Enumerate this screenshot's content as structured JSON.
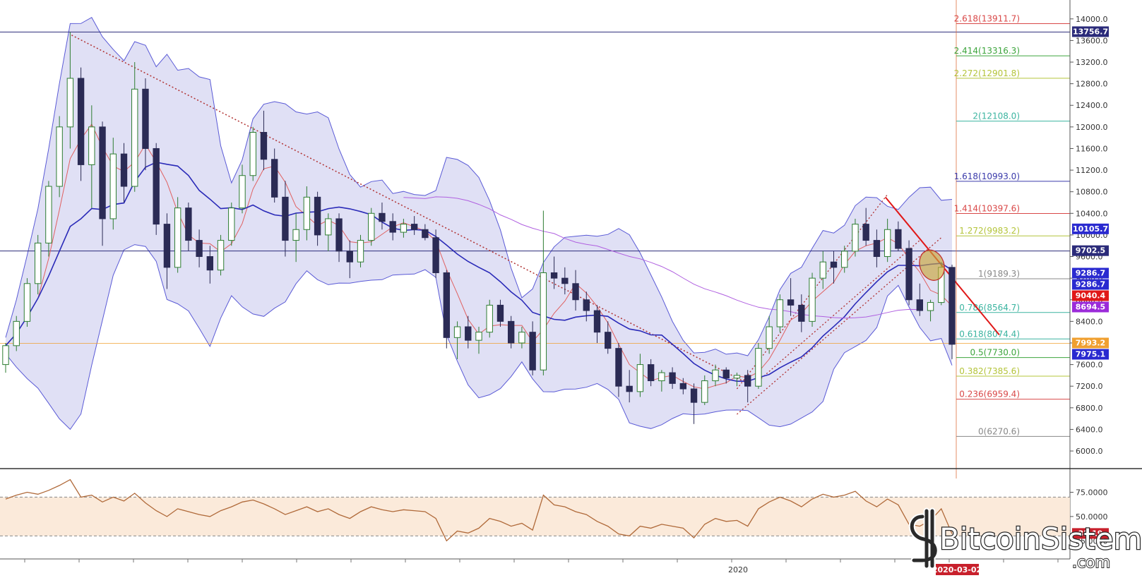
{
  "chart_data": {
    "type": "candlestick",
    "ylim": [
      5700,
      14350
    ],
    "rsi_ylim": [
      15,
      95
    ],
    "price_ticks": [
      14000.0,
      13600.0,
      13200.0,
      12800.0,
      12400.0,
      12000.0,
      11600.0,
      11200.0,
      10800.0,
      10400.0,
      10000.0,
      9600.0,
      9200.0,
      8800.0,
      8400.0,
      8000.0,
      7600.0,
      7200.0,
      6800.0,
      6400.0,
      6000.0
    ],
    "price_tick_labels": [
      "14000.0",
      "13600.0",
      "13200.0",
      "12800.0",
      "12400.0",
      "12000.0",
      "11600.0",
      "11200.0",
      "10800.0",
      "10400.0",
      "10000.0",
      "9600.0",
      "9200.0",
      "8800.0",
      "8400.0",
      "8000.0",
      "7600.0",
      "7200.0",
      "6800.0",
      "6400.0",
      "6000.0"
    ],
    "rsi_ticks": [
      75,
      50,
      25
    ],
    "rsi_tick_labels": [
      "75.0000",
      "50.0000",
      "25.0000"
    ],
    "rsi_levels": [
      70,
      30
    ],
    "x_date_labels": [
      {
        "label": "2020",
        "x": 168
      }
    ],
    "crosshair_date": {
      "label": "2020-03-02",
      "x": 171
    },
    "horizontal_lines": [
      {
        "value": 13756.7,
        "color": "#2b2b7a"
      },
      {
        "value": 9702.5,
        "color": "#2b2b7a"
      },
      {
        "value": 7993.2,
        "color": "#f0a030"
      }
    ],
    "fibonacci": [
      {
        "ratio": "2.618",
        "price": "13911.7",
        "value": 13911.7,
        "color": "#d94848"
      },
      {
        "ratio": "2.414",
        "price": "13316.3",
        "value": 13316.3,
        "color": "#3da53d"
      },
      {
        "ratio": "2.272",
        "price": "12901.8",
        "value": 12901.8,
        "color": "#b4c43a"
      },
      {
        "ratio": "2",
        "price": "12108.0",
        "value": 12108.0,
        "color": "#3bb4a0"
      },
      {
        "ratio": "1.618",
        "price": "10993.0",
        "value": 10993.0,
        "color": "#3a3aaa"
      },
      {
        "ratio": "1.414",
        "price": "10397.6",
        "value": 10397.6,
        "color": "#d94848"
      },
      {
        "ratio": "1.272",
        "price": "9983.2",
        "value": 9983.2,
        "color": "#b4c43a"
      },
      {
        "ratio": "1",
        "price": "9189.3",
        "value": 9189.3,
        "color": "#888888"
      },
      {
        "ratio": "0.786",
        "price": "8564.7",
        "value": 8564.7,
        "color": "#3bb4a0"
      },
      {
        "ratio": "0.618",
        "price": "8074.4",
        "value": 8074.4,
        "color": "#3bb4a0"
      },
      {
        "ratio": "0.5",
        "price": "7730.0",
        "value": 7730.0,
        "color": "#3da53d"
      },
      {
        "ratio": "0.382",
        "price": "7385.6",
        "value": 7385.6,
        "color": "#b4c43a"
      },
      {
        "ratio": "0.236",
        "price": "6959.4",
        "value": 6959.4,
        "color": "#d94848"
      },
      {
        "ratio": "0",
        "price": "6270.6",
        "value": 6270.6,
        "color": "#888888"
      }
    ],
    "price_badges": [
      {
        "label": "13756.7",
        "value": 13756.7,
        "color": "#2b2b7a"
      },
      {
        "label": "10105.7",
        "value": 10105.7,
        "color": "#2a2ad0"
      },
      {
        "label": "9702.5",
        "value": 9702.5,
        "color": "#2b2b7a"
      },
      {
        "label": "9286.7",
        "value": 9286.7,
        "color": "#2a2ad0"
      },
      {
        "label": "9286.7",
        "value": 9286.7,
        "color": "#2a2ad0"
      },
      {
        "label": "9040.4",
        "value": 9040.4,
        "color": "#e01818"
      },
      {
        "label": "8694.5",
        "value": 8694.5,
        "color": "#9b2bd9"
      },
      {
        "label": "7993.2",
        "value": 7993.2,
        "color": "#f0a030"
      },
      {
        "label": "7975.1",
        "value": 7975.1,
        "color": "#2a2ad0"
      }
    ],
    "rsi_badge": {
      "label": "32.19",
      "color": "#c8202c"
    },
    "candles": [
      {
        "o": 7600,
        "h": 8000,
        "l": 7450,
        "c": 7950
      },
      {
        "o": 7950,
        "h": 8500,
        "l": 7850,
        "c": 8400
      },
      {
        "o": 8400,
        "h": 9200,
        "l": 8300,
        "c": 9100
      },
      {
        "o": 9100,
        "h": 10000,
        "l": 8900,
        "c": 9850
      },
      {
        "o": 9850,
        "h": 11000,
        "l": 9600,
        "c": 10900
      },
      {
        "o": 10900,
        "h": 12200,
        "l": 10700,
        "c": 12000
      },
      {
        "o": 12000,
        "h": 13756.7,
        "l": 11600,
        "c": 12900
      },
      {
        "o": 12900,
        "h": 13100,
        "l": 11000,
        "c": 11300
      },
      {
        "o": 11300,
        "h": 12400,
        "l": 10500,
        "c": 12000
      },
      {
        "o": 12000,
        "h": 12100,
        "l": 9800,
        "c": 10300
      },
      {
        "o": 10300,
        "h": 11800,
        "l": 10100,
        "c": 11500
      },
      {
        "o": 11500,
        "h": 11700,
        "l": 10600,
        "c": 10900
      },
      {
        "o": 10900,
        "h": 13200,
        "l": 10800,
        "c": 12700
      },
      {
        "o": 12700,
        "h": 12900,
        "l": 11200,
        "c": 11600
      },
      {
        "o": 11600,
        "h": 11700,
        "l": 10000,
        "c": 10200
      },
      {
        "o": 10200,
        "h": 10400,
        "l": 9000,
        "c": 9400
      },
      {
        "o": 9400,
        "h": 10700,
        "l": 9300,
        "c": 10500
      },
      {
        "o": 10500,
        "h": 10600,
        "l": 9700,
        "c": 9900
      },
      {
        "o": 9900,
        "h": 10100,
        "l": 9400,
        "c": 9600
      },
      {
        "o": 9600,
        "h": 9800,
        "l": 9100,
        "c": 9350
      },
      {
        "o": 9350,
        "h": 10000,
        "l": 9250,
        "c": 9900
      },
      {
        "o": 9900,
        "h": 10600,
        "l": 9800,
        "c": 10500
      },
      {
        "o": 10500,
        "h": 11300,
        "l": 10400,
        "c": 11100
      },
      {
        "o": 11100,
        "h": 12000,
        "l": 11000,
        "c": 11900
      },
      {
        "o": 11900,
        "h": 12300,
        "l": 11200,
        "c": 11400
      },
      {
        "o": 11400,
        "h": 11600,
        "l": 10600,
        "c": 10700
      },
      {
        "o": 10700,
        "h": 11000,
        "l": 9600,
        "c": 9900
      },
      {
        "o": 9900,
        "h": 10400,
        "l": 9500,
        "c": 10100
      },
      {
        "o": 10100,
        "h": 10900,
        "l": 9900,
        "c": 10700
      },
      {
        "o": 10700,
        "h": 10800,
        "l": 9800,
        "c": 10000
      },
      {
        "o": 10000,
        "h": 10400,
        "l": 9700,
        "c": 10300
      },
      {
        "o": 10300,
        "h": 10400,
        "l": 9500,
        "c": 9700
      },
      {
        "o": 9700,
        "h": 9900,
        "l": 9200,
        "c": 9500
      },
      {
        "o": 9500,
        "h": 10000,
        "l": 9400,
        "c": 9900
      },
      {
        "o": 9900,
        "h": 10500,
        "l": 9800,
        "c": 10400
      },
      {
        "o": 10400,
        "h": 10600,
        "l": 10100,
        "c": 10250
      },
      {
        "o": 10250,
        "h": 10400,
        "l": 9900,
        "c": 10050
      },
      {
        "o": 10050,
        "h": 10300,
        "l": 9950,
        "c": 10200
      },
      {
        "o": 10200,
        "h": 10350,
        "l": 10000,
        "c": 10100
      },
      {
        "o": 10100,
        "h": 10200,
        "l": 9900,
        "c": 9950
      },
      {
        "o": 9950,
        "h": 10100,
        "l": 9200,
        "c": 9300
      },
      {
        "o": 9300,
        "h": 9350,
        "l": 7900,
        "c": 8100
      },
      {
        "o": 8100,
        "h": 8400,
        "l": 7700,
        "c": 8300
      },
      {
        "o": 8300,
        "h": 8500,
        "l": 7900,
        "c": 8050
      },
      {
        "o": 8050,
        "h": 8300,
        "l": 7800,
        "c": 8200
      },
      {
        "o": 8200,
        "h": 8800,
        "l": 8100,
        "c": 8700
      },
      {
        "o": 8700,
        "h": 8800,
        "l": 8300,
        "c": 8400
      },
      {
        "o": 8400,
        "h": 8500,
        "l": 7900,
        "c": 8000
      },
      {
        "o": 8000,
        "h": 8300,
        "l": 7900,
        "c": 8200
      },
      {
        "o": 8200,
        "h": 8400,
        "l": 7400,
        "c": 7500
      },
      {
        "o": 7500,
        "h": 10450,
        "l": 7400,
        "c": 9300
      },
      {
        "o": 9300,
        "h": 9600,
        "l": 9000,
        "c": 9200
      },
      {
        "o": 9200,
        "h": 9400,
        "l": 8900,
        "c": 9100
      },
      {
        "o": 9100,
        "h": 9350,
        "l": 8600,
        "c": 8800
      },
      {
        "o": 8800,
        "h": 8950,
        "l": 8400,
        "c": 8600
      },
      {
        "o": 8600,
        "h": 8700,
        "l": 8000,
        "c": 8200
      },
      {
        "o": 8200,
        "h": 8400,
        "l": 7800,
        "c": 7900
      },
      {
        "o": 7900,
        "h": 8000,
        "l": 7000,
        "c": 7200
      },
      {
        "o": 7200,
        "h": 7500,
        "l": 6900,
        "c": 7100
      },
      {
        "o": 7100,
        "h": 7800,
        "l": 7000,
        "c": 7600
      },
      {
        "o": 7600,
        "h": 7700,
        "l": 7200,
        "c": 7300
      },
      {
        "o": 7300,
        "h": 7500,
        "l": 7100,
        "c": 7450
      },
      {
        "o": 7450,
        "h": 7550,
        "l": 7150,
        "c": 7250
      },
      {
        "o": 7250,
        "h": 7350,
        "l": 7050,
        "c": 7150
      },
      {
        "o": 7150,
        "h": 7250,
        "l": 6500,
        "c": 6900
      },
      {
        "o": 6900,
        "h": 7400,
        "l": 6850,
        "c": 7300
      },
      {
        "o": 7300,
        "h": 7600,
        "l": 7200,
        "c": 7500
      },
      {
        "o": 7500,
        "h": 7550,
        "l": 7250,
        "c": 7350
      },
      {
        "o": 7350,
        "h": 7450,
        "l": 7200,
        "c": 7400
      },
      {
        "o": 7400,
        "h": 7500,
        "l": 6900,
        "c": 7200
      },
      {
        "o": 7200,
        "h": 8000,
        "l": 7150,
        "c": 7900
      },
      {
        "o": 7900,
        "h": 8500,
        "l": 7800,
        "c": 8300
      },
      {
        "o": 8300,
        "h": 8900,
        "l": 8200,
        "c": 8800
      },
      {
        "o": 8800,
        "h": 9200,
        "l": 8500,
        "c": 8700
      },
      {
        "o": 8700,
        "h": 8900,
        "l": 8200,
        "c": 8400
      },
      {
        "o": 8400,
        "h": 9300,
        "l": 8300,
        "c": 9200
      },
      {
        "o": 9200,
        "h": 9700,
        "l": 9000,
        "c": 9500
      },
      {
        "o": 9500,
        "h": 9700,
        "l": 9100,
        "c": 9400
      },
      {
        "o": 9400,
        "h": 9800,
        "l": 9300,
        "c": 9700
      },
      {
        "o": 9700,
        "h": 10300,
        "l": 9600,
        "c": 10200
      },
      {
        "o": 10200,
        "h": 10500,
        "l": 9800,
        "c": 9900
      },
      {
        "o": 9900,
        "h": 10100,
        "l": 9400,
        "c": 9600
      },
      {
        "o": 9600,
        "h": 10300,
        "l": 9500,
        "c": 10100
      },
      {
        "o": 10100,
        "h": 10250,
        "l": 9700,
        "c": 9750
      },
      {
        "o": 9750,
        "h": 9900,
        "l": 8700,
        "c": 8800
      },
      {
        "o": 8800,
        "h": 9100,
        "l": 8500,
        "c": 8600
      },
      {
        "o": 8600,
        "h": 8800,
        "l": 8400,
        "c": 8750
      },
      {
        "o": 8750,
        "h": 9500,
        "l": 8700,
        "c": 9400
      },
      {
        "o": 9400,
        "h": 9450,
        "l": 7700,
        "c": 7975.1
      }
    ],
    "rsi": [
      68,
      72,
      75,
      73,
      77,
      82,
      88,
      70,
      72,
      65,
      70,
      66,
      74,
      64,
      56,
      50,
      58,
      55,
      52,
      50,
      56,
      60,
      65,
      67,
      63,
      58,
      52,
      56,
      60,
      55,
      58,
      52,
      48,
      55,
      60,
      57,
      55,
      57,
      56,
      55,
      48,
      25,
      35,
      33,
      38,
      48,
      45,
      40,
      43,
      36,
      72,
      62,
      60,
      55,
      52,
      45,
      40,
      32,
      30,
      40,
      38,
      42,
      40,
      38,
      28,
      42,
      48,
      45,
      46,
      40,
      58,
      65,
      70,
      66,
      60,
      68,
      73,
      70,
      72,
      76,
      66,
      60,
      68,
      62,
      42,
      40,
      46,
      58,
      32.19
    ]
  },
  "watermark": {
    "name": "BitcoinSistemi",
    "domain": ".com"
  }
}
